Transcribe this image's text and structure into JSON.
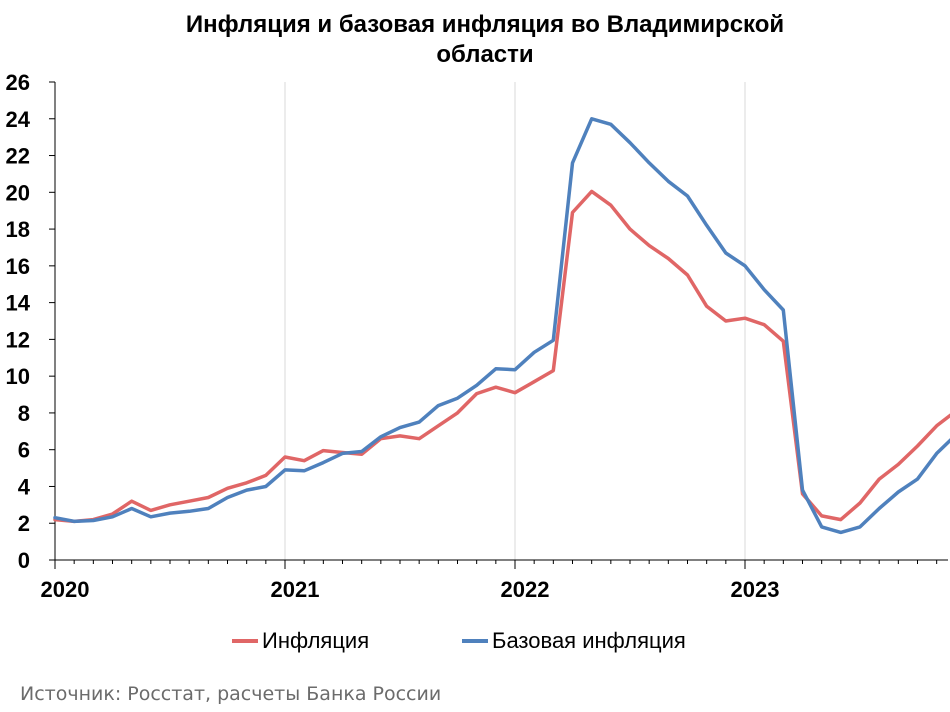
{
  "chart_data": {
    "type": "line",
    "title": "Инфляция и базовая инфляция во Владимирской области",
    "title_lines": [
      "Инфляция и базовая инфляция во Владимирской",
      "области"
    ],
    "xlabel": "",
    "ylabel": "",
    "ylim": [
      0,
      26
    ],
    "yticks": [
      0,
      2,
      4,
      6,
      8,
      10,
      12,
      14,
      16,
      18,
      20,
      22,
      24,
      26
    ],
    "x_tick_labels": [
      "2020",
      "2021",
      "2022",
      "2023"
    ],
    "x": [
      "2020-01",
      "2020-02",
      "2020-03",
      "2020-04",
      "2020-05",
      "2020-06",
      "2020-07",
      "2020-08",
      "2020-09",
      "2020-10",
      "2020-11",
      "2020-12",
      "2021-01",
      "2021-02",
      "2021-03",
      "2021-04",
      "2021-05",
      "2021-06",
      "2021-07",
      "2021-08",
      "2021-09",
      "2021-10",
      "2021-11",
      "2021-12",
      "2022-01",
      "2022-02",
      "2022-03",
      "2022-04",
      "2022-05",
      "2022-06",
      "2022-07",
      "2022-08",
      "2022-09",
      "2022-10",
      "2022-11",
      "2022-12",
      "2023-01",
      "2023-02",
      "2023-03",
      "2023-04",
      "2023-05",
      "2023-06",
      "2023-07",
      "2023-08",
      "2023-09",
      "2023-10",
      "2023-11",
      "2023-12"
    ],
    "grid": true,
    "grid_axis": "x",
    "legend_position": "bottom",
    "series": [
      {
        "name": "Инфляция",
        "color": "#e06666",
        "values": [
          2.2,
          2.1,
          2.2,
          2.5,
          3.2,
          2.7,
          3.0,
          3.2,
          3.4,
          3.9,
          4.2,
          4.6,
          5.6,
          5.4,
          5.95,
          5.85,
          5.75,
          6.6,
          6.75,
          6.6,
          7.3,
          8.0,
          9.05,
          9.4,
          9.1,
          9.7,
          10.3,
          18.9,
          20.05,
          19.3,
          18.0,
          17.1,
          16.4,
          15.5,
          13.8,
          13.0,
          13.15,
          12.8,
          11.9,
          3.6,
          2.4,
          2.2,
          3.1,
          4.4,
          5.2,
          6.2,
          7.3,
          8.1
        ]
      },
      {
        "name": "Базовая инфляция",
        "color": "#4f81bd",
        "values": [
          2.3,
          2.1,
          2.15,
          2.35,
          2.8,
          2.35,
          2.55,
          2.65,
          2.8,
          3.4,
          3.8,
          4.0,
          4.9,
          4.85,
          5.3,
          5.8,
          5.9,
          6.7,
          7.2,
          7.5,
          8.4,
          8.8,
          9.5,
          10.4,
          10.35,
          11.3,
          11.95,
          21.6,
          24.0,
          23.7,
          22.7,
          21.6,
          20.6,
          19.8,
          18.2,
          16.7,
          16.0,
          14.7,
          13.6,
          3.8,
          1.8,
          1.5,
          1.8,
          2.8,
          3.7,
          4.4,
          5.8,
          6.8
        ]
      }
    ]
  },
  "source_text": "Источник: Росстат, расчеты Банка России"
}
